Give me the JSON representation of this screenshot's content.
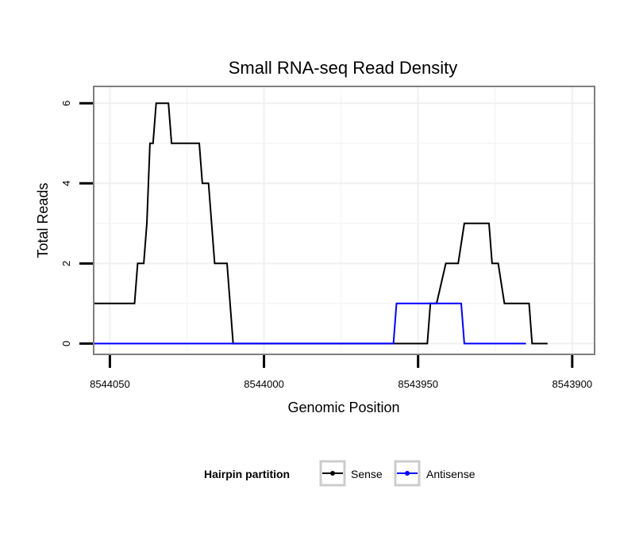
{
  "chart_data": {
    "type": "line",
    "title": "Small RNA-seq Read Density",
    "xlabel": "Genomic Position",
    "ylabel": "Total Reads",
    "x_reversed": true,
    "xlim": [
      8544055,
      8543893
    ],
    "ylim": [
      -0.25,
      6.4
    ],
    "x_ticks": [
      8544050,
      8544000,
      8543950,
      8543900
    ],
    "x_tick_labels": [
      "8544050",
      "8544000",
      "8543950",
      "8543900"
    ],
    "y_ticks": [
      0,
      2,
      4,
      6
    ],
    "y_tick_labels": [
      "0",
      "2",
      "4",
      "6"
    ],
    "grid": true,
    "legend": {
      "title": "Hairpin partition",
      "position": "bottom",
      "entries": [
        "Sense",
        "Antisense"
      ]
    },
    "series": [
      {
        "name": "Sense",
        "color": "#000000",
        "points": [
          [
            8544055,
            1
          ],
          [
            8544042,
            1
          ],
          [
            8544041,
            2
          ],
          [
            8544039,
            2
          ],
          [
            8544038,
            3
          ],
          [
            8544037,
            5
          ],
          [
            8544036,
            5
          ],
          [
            8544035,
            6
          ],
          [
            8544031,
            6
          ],
          [
            8544030,
            5
          ],
          [
            8544021,
            5
          ],
          [
            8544020,
            4
          ],
          [
            8544018,
            4
          ],
          [
            8544016,
            2
          ],
          [
            8544012,
            2
          ],
          [
            8544010,
            0
          ],
          [
            8543947,
            0
          ],
          [
            8543946,
            1
          ],
          [
            8543944,
            1
          ],
          [
            8543941,
            2
          ],
          [
            8543937,
            2
          ],
          [
            8543935,
            3
          ],
          [
            8543927,
            3
          ],
          [
            8543926,
            2
          ],
          [
            8543924,
            2
          ],
          [
            8543922,
            1
          ],
          [
            8543914,
            1
          ],
          [
            8543913,
            0
          ],
          [
            8543908,
            0
          ]
        ]
      },
      {
        "name": "Antisense",
        "color": "#0000ff",
        "points": [
          [
            8544055,
            0
          ],
          [
            8543958,
            0
          ],
          [
            8543957,
            1
          ],
          [
            8543936,
            1
          ],
          [
            8543935,
            0
          ],
          [
            8543915,
            0
          ]
        ]
      }
    ]
  }
}
